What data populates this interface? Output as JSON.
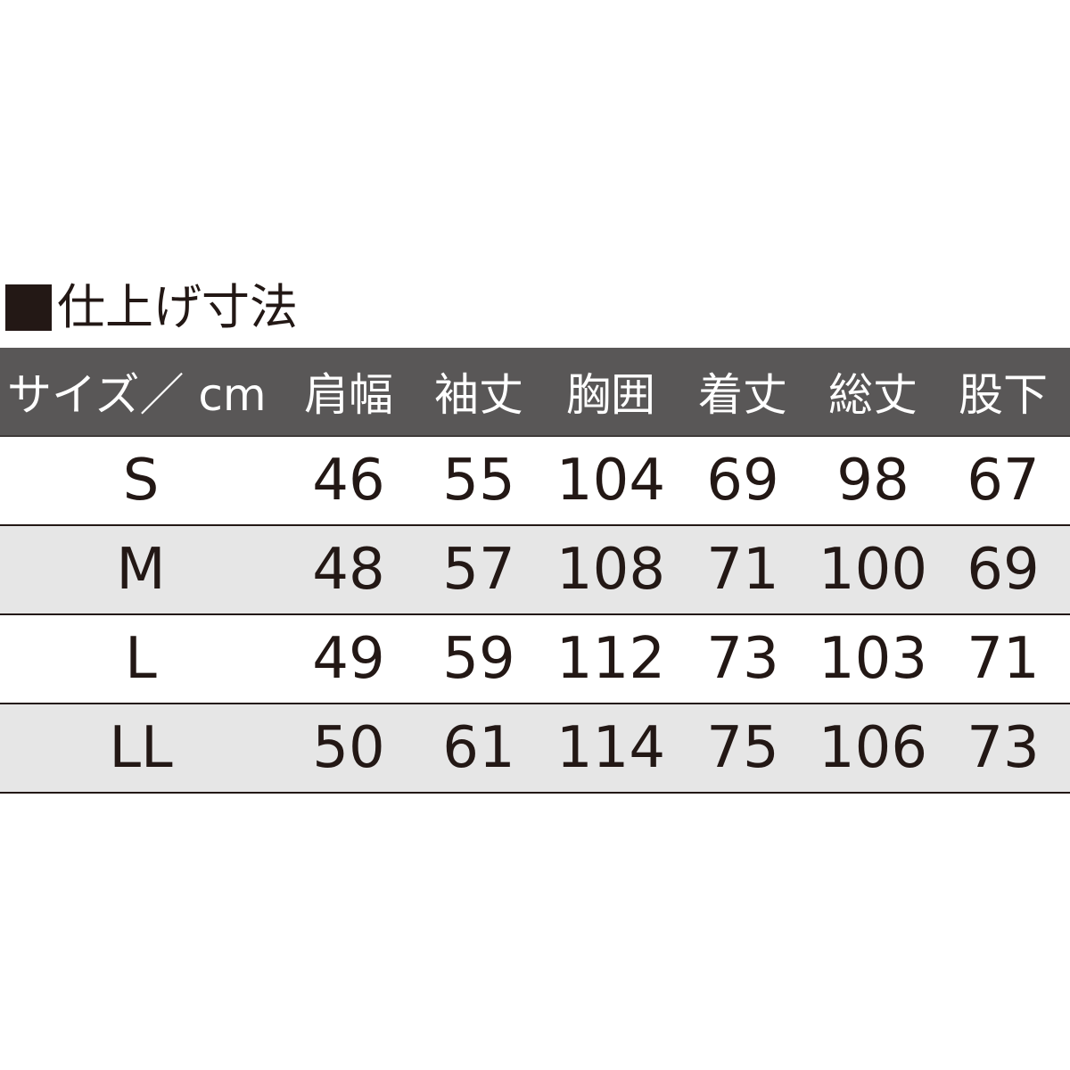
{
  "title": "仕上げ寸法",
  "colors": {
    "header_bg": "#595757",
    "stripe_bg": "#e6e6e6",
    "text": "#231815"
  },
  "headers": [
    "サイズ／ cm",
    "肩幅",
    "袖丈",
    "胸囲",
    "着丈",
    "総丈",
    "股下"
  ],
  "rows": [
    [
      "S",
      "46",
      "55",
      "104",
      "69",
      "98",
      "67"
    ],
    [
      "M",
      "48",
      "57",
      "108",
      "71",
      "100",
      "69"
    ],
    [
      "L",
      "49",
      "59",
      "112",
      "73",
      "103",
      "71"
    ],
    [
      "LL",
      "50",
      "61",
      "114",
      "75",
      "106",
      "73"
    ]
  ]
}
